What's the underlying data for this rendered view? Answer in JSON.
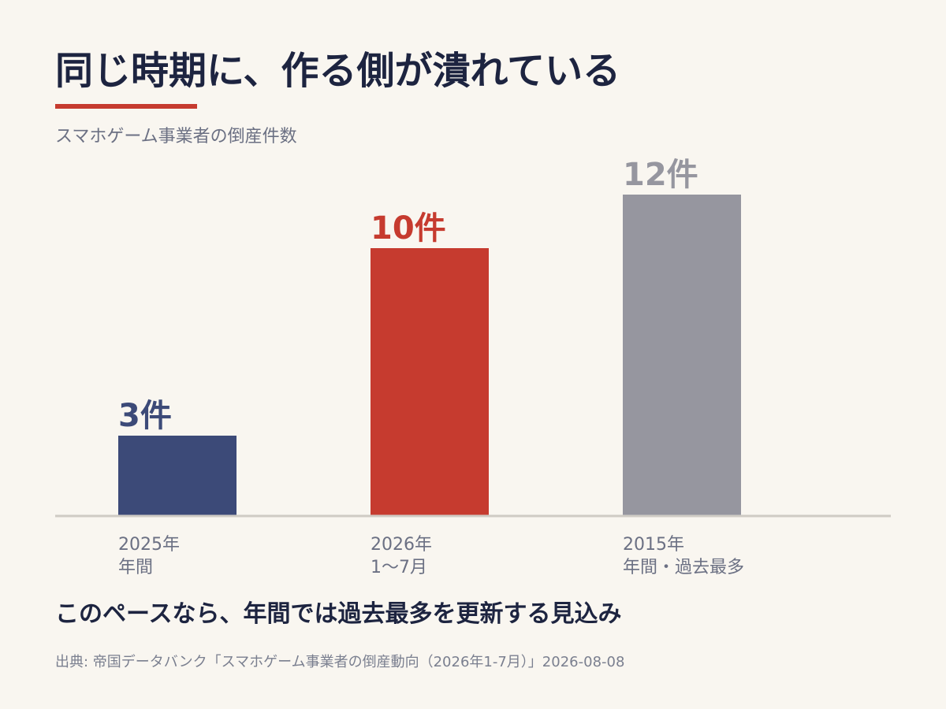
{
  "title": "同じ時期に、作る側が潰れている",
  "conclusion": "このペースなら、年間では過去最多を更新する見込み",
  "source": "出典: 帝国データバンク「スマホゲーム事業者の倒産動向（2026年1-7月）」2026-08-08",
  "colors": {
    "background": "#f9f6f0",
    "title": "#1d2440",
    "accent": "#c63b2f",
    "axis": "#cfcbc4",
    "tick_text": "#6b7083"
  },
  "chart_data": {
    "type": "bar",
    "title": "同じ時期に、作る側が潰れている",
    "subtitle": "スマホゲーム事業者の倒産件数",
    "xlabel": "",
    "ylabel": "",
    "ylim": [
      0,
      12
    ],
    "grid": false,
    "legend": "none",
    "categories": [
      [
        "2025年",
        "年間"
      ],
      [
        "2026年",
        "1〜7月"
      ],
      [
        "2015年",
        "年間・過去最多"
      ]
    ],
    "values": [
      3,
      10,
      12
    ],
    "value_labels": [
      "3件",
      "10件",
      "12件"
    ],
    "bar_colors": [
      "#3c4a78",
      "#c63b2f",
      "#96969f"
    ]
  }
}
